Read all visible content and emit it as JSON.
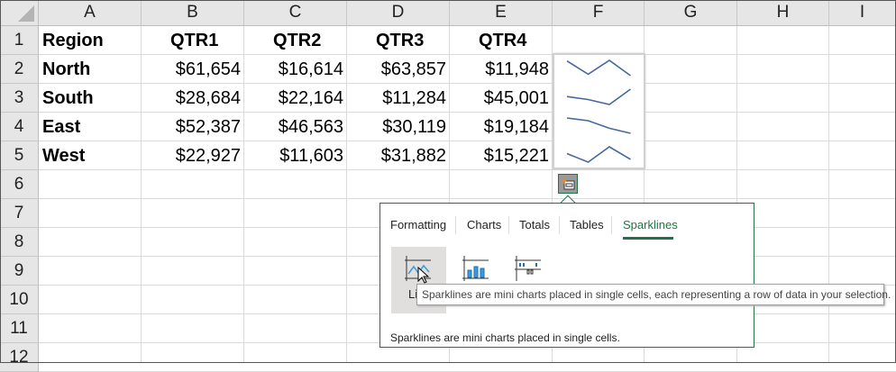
{
  "columns": [
    "A",
    "B",
    "C",
    "D",
    "E",
    "F",
    "G",
    "H",
    "I"
  ],
  "rows": [
    "1",
    "2",
    "3",
    "4",
    "5",
    "6",
    "7",
    "8",
    "9",
    "10",
    "11",
    "12"
  ],
  "table": {
    "headers": [
      "Region",
      "QTR1",
      "QTR2",
      "QTR3",
      "QTR4"
    ],
    "data": [
      {
        "region": "North",
        "values": [
          "$61,654",
          "$16,614",
          "$63,857",
          "$11,948"
        ]
      },
      {
        "region": "South",
        "values": [
          "$28,684",
          "$22,164",
          "$11,284",
          "$45,001"
        ]
      },
      {
        "region": "East",
        "values": [
          "$52,387",
          "$46,563",
          "$30,119",
          "$19,184"
        ]
      },
      {
        "region": "West",
        "values": [
          "$22,927",
          "$11,603",
          "$31,882",
          "$15,221"
        ]
      }
    ]
  },
  "sparkline_color": "#44699e",
  "accent": "#217346",
  "quick_analysis": {
    "icon": "quick-analysis-icon",
    "tabs": [
      {
        "label": "Formatting",
        "active": false
      },
      {
        "label": "Charts",
        "active": false
      },
      {
        "label": "Totals",
        "active": false
      },
      {
        "label": "Tables",
        "active": false
      },
      {
        "label": "Sparklines",
        "active": true
      }
    ],
    "options": [
      {
        "icon": "line-sparkline-icon",
        "label": "Li",
        "selected": true
      },
      {
        "icon": "column-sparkline-icon"
      },
      {
        "icon": "win-loss-sparkline-icon"
      }
    ],
    "footer": "Sparklines are mini charts placed in single cells.",
    "tooltip": "Sparklines are mini charts placed in single cells, each representing a row of data in your selection."
  }
}
